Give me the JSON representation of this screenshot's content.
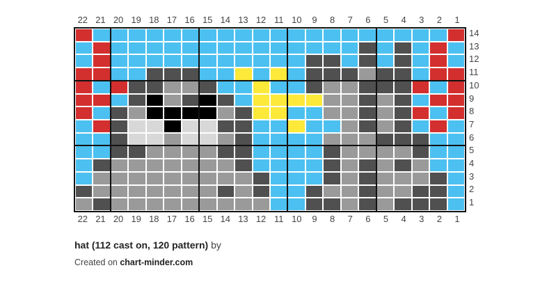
{
  "chart": {
    "columns": [
      "22",
      "21",
      "20",
      "19",
      "18",
      "17",
      "16",
      "15",
      "14",
      "13",
      "12",
      "11",
      "10",
      "9",
      "8",
      "7",
      "6",
      "5",
      "4",
      "3",
      "2",
      "1"
    ],
    "rows": [
      "14",
      "13",
      "12",
      "11",
      "10",
      "9",
      "8",
      "7",
      "6",
      "5",
      "4",
      "3",
      "2",
      "1"
    ],
    "palette": {
      "B": "#4cc0f0",
      "R": "#d32f2f",
      "Y": "#fce93a",
      "D": "#505050",
      "M": "#9a9a9a",
      "L": "#d8d8d8",
      "K": "#000000"
    },
    "grid": [
      "RBBBBBBBBBBBBBBBBBBBBR",
      "BRBBBBBBBBBBBBBBDBDBRB",
      "BRBBBBBBBBBBBDDBDBDBRB",
      "RRBBDDDBBYBYBDDDMDDBRR",
      "RBRDDMMDBBYBBDMMDDDRBR",
      "RRBDKMDKDBYYYYMMDMDBRR",
      "RBDMKKKKMDYYBBMMDMDRBR",
      "BRDLLKLLDDBBYBBMDMDBRB",
      "BBDLLMLLMDBBBBMMMDDDBB",
      "BBDDMMMMDDBBBBDMMMMDBB",
      "BDMMMMMMMDBBBBDMDMDMBB",
      "BMMMMMMMMMDBBBDMDMMMDB",
      "DMMMMMMMDMDBBDMMDMMDDB",
      "MDMMMMMMMMMBBDDMDMDDDB"
    ]
  },
  "footer": {
    "title": "hat (112 cast on, 120 pattern)",
    "by": "by",
    "created_prefix": "Created on",
    "site": "chart-minder.com"
  }
}
